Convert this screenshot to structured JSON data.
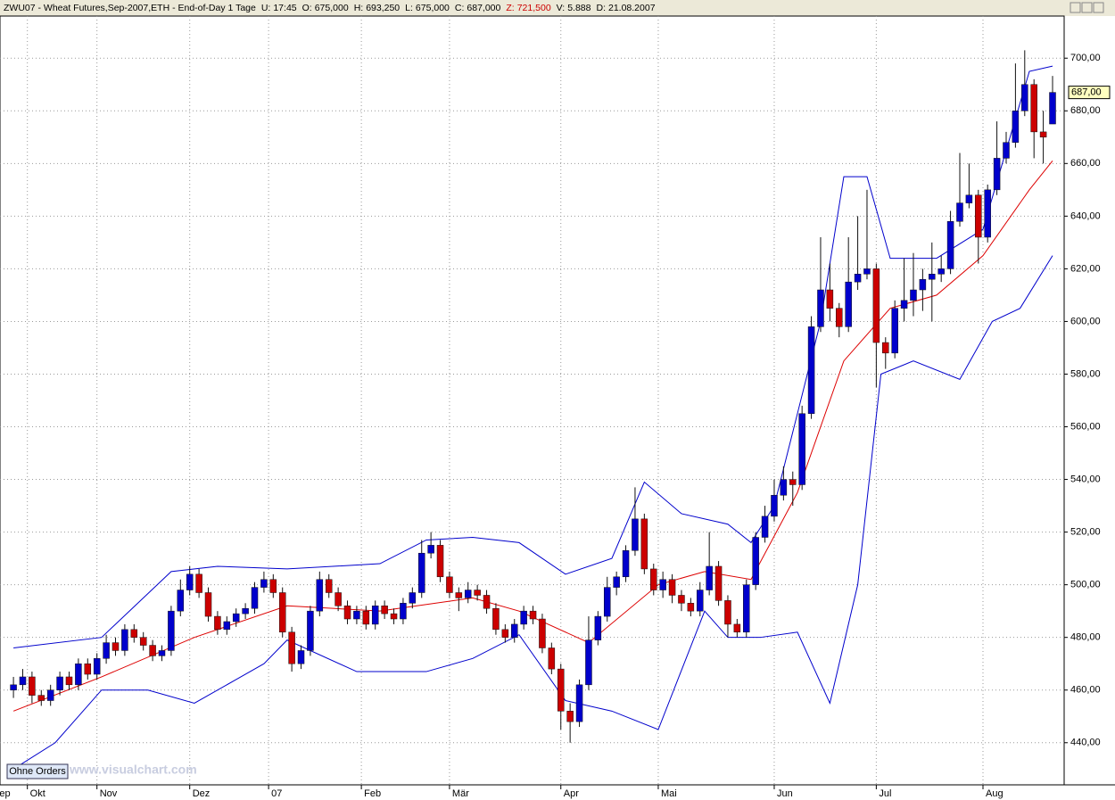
{
  "header": {
    "symbol": "ZWU07 - Wheat Futures,Sep-2007,ETH - End-of-Day 1 Tage",
    "fields": [
      {
        "label": "U:",
        "value": "17:45"
      },
      {
        "label": "O:",
        "value": "675,000"
      },
      {
        "label": "H:",
        "value": "693,250"
      },
      {
        "label": "L:",
        "value": "675,000"
      },
      {
        "label": "C:",
        "value": "687,000"
      },
      {
        "label": "Z:",
        "value": "721,500"
      },
      {
        "label": "V:",
        "value": "5.888"
      },
      {
        "label": "D:",
        "value": "21.08.2007"
      }
    ]
  },
  "orders_button": "Ohne Orders",
  "watermark": "www.visualchart.com",
  "chart_data": {
    "type": "candlestick",
    "up_color": "#0000cc",
    "down_color": "#cc0000",
    "grid": true,
    "xlim": [
      -1.9,
      227.5
    ],
    "ylim": [
      424,
      716
    ],
    "xticks": [
      {
        "value": -4,
        "label": "Sep"
      },
      {
        "value": 4,
        "label": "Okt"
      },
      {
        "value": 19,
        "label": "Nov"
      },
      {
        "value": 39,
        "label": "Dez"
      },
      {
        "value": 56,
        "label": "07"
      },
      {
        "value": 76,
        "label": "Feb"
      },
      {
        "value": 95,
        "label": "Mär"
      },
      {
        "value": 119,
        "label": "Apr"
      },
      {
        "value": 140,
        "label": "Mai"
      },
      {
        "value": 165,
        "label": "Jun"
      },
      {
        "value": 187,
        "label": "Jul"
      },
      {
        "value": 210,
        "label": "Aug"
      }
    ],
    "yticks": [
      {
        "value": 440,
        "label": "440,00"
      },
      {
        "value": 460,
        "label": "460,00"
      },
      {
        "value": 480,
        "label": "480,00"
      },
      {
        "value": 500,
        "label": "500,00"
      },
      {
        "value": 520,
        "label": "520,00"
      },
      {
        "value": 540,
        "label": "540,00"
      },
      {
        "value": 560,
        "label": "560,00"
      },
      {
        "value": 580,
        "label": "580,00"
      },
      {
        "value": 600,
        "label": "600,00"
      },
      {
        "value": 620,
        "label": "620,00"
      },
      {
        "value": 640,
        "label": "640,00"
      },
      {
        "value": 660,
        "label": "660,00"
      },
      {
        "value": 680,
        "label": "680,00"
      },
      {
        "value": 700,
        "label": "700,00"
      }
    ],
    "last_price": {
      "value": 687,
      "label": "687,00"
    },
    "x": [
      1,
      3,
      5,
      7,
      9,
      11,
      13,
      15,
      17,
      19,
      21,
      23,
      25,
      27,
      29,
      31,
      33,
      35,
      37,
      39,
      41,
      43,
      45,
      47,
      49,
      51,
      53,
      55,
      57,
      59,
      61,
      63,
      65,
      67,
      69,
      71,
      73,
      75,
      77,
      79,
      81,
      83,
      85,
      87,
      89,
      91,
      93,
      95,
      97,
      99,
      101,
      103,
      105,
      107,
      109,
      111,
      113,
      115,
      117,
      119,
      121,
      123,
      125,
      127,
      129,
      131,
      133,
      135,
      137,
      139,
      141,
      143,
      145,
      147,
      149,
      151,
      153,
      155,
      157,
      159,
      161,
      163,
      165,
      167,
      169,
      171,
      173,
      175,
      177,
      179,
      181,
      183,
      185,
      187,
      189,
      191,
      193,
      195,
      197,
      199,
      201,
      203,
      205,
      207,
      209,
      211,
      213,
      215,
      217,
      219,
      221,
      223,
      225
    ],
    "open": [
      460,
      462,
      465,
      458,
      456,
      460,
      465,
      462,
      470,
      466,
      472,
      478,
      475,
      483,
      480,
      477,
      473,
      475,
      490,
      498,
      504,
      497,
      488,
      483,
      486,
      489,
      491,
      499,
      502,
      497,
      482,
      470,
      475,
      490,
      502,
      497,
      492,
      487,
      490,
      485,
      492,
      489,
      487,
      493,
      497,
      512,
      515,
      503,
      497,
      495,
      498,
      496,
      491,
      483,
      480,
      485,
      490,
      487,
      476,
      468,
      452,
      448,
      462,
      479,
      488,
      499,
      503,
      513,
      525,
      506,
      498,
      502,
      496,
      493,
      490,
      498,
      507,
      494,
      485,
      482,
      500,
      518,
      526,
      534,
      540,
      538,
      565,
      598,
      612,
      605,
      598,
      615,
      618,
      620,
      592,
      588,
      605,
      608,
      612,
      616,
      618,
      620,
      638,
      645,
      648,
      632,
      650,
      662,
      668,
      680,
      690,
      672,
      675
    ],
    "high": [
      465,
      468,
      467,
      460,
      462,
      467,
      467,
      472,
      472,
      474,
      481,
      480,
      485,
      485,
      482,
      479,
      477,
      492,
      502,
      507,
      506,
      499,
      490,
      488,
      491,
      493,
      501,
      505,
      504,
      499,
      484,
      477,
      492,
      505,
      504,
      499,
      494,
      492,
      492,
      494,
      494,
      491,
      495,
      499,
      517,
      520,
      517,
      505,
      499,
      501,
      500,
      498,
      493,
      485,
      487,
      492,
      492,
      489,
      478,
      470,
      455,
      464,
      488,
      490,
      503,
      505,
      515,
      537,
      527,
      508,
      505,
      504,
      498,
      495,
      501,
      520,
      509,
      496,
      487,
      502,
      520,
      530,
      540,
      545,
      543,
      568,
      602,
      632,
      622,
      607,
      632,
      640,
      650,
      622,
      594,
      608,
      624,
      626,
      620,
      630,
      625,
      642,
      664,
      660,
      650,
      652,
      676,
      672,
      698,
      703,
      692,
      680,
      693.25
    ],
    "low": [
      457,
      460,
      455,
      454,
      454,
      458,
      460,
      460,
      464,
      464,
      470,
      473,
      473,
      478,
      475,
      471,
      471,
      473,
      488,
      496,
      495,
      486,
      481,
      481,
      484,
      487,
      489,
      497,
      495,
      480,
      467,
      468,
      473,
      488,
      495,
      490,
      485,
      485,
      483,
      483,
      487,
      485,
      485,
      491,
      495,
      510,
      501,
      495,
      490,
      493,
      494,
      489,
      481,
      478,
      478,
      483,
      485,
      474,
      466,
      445,
      440,
      446,
      460,
      477,
      486,
      496,
      501,
      511,
      504,
      496,
      495,
      493,
      490,
      488,
      488,
      496,
      492,
      480,
      480,
      480,
      498,
      516,
      524,
      532,
      530,
      536,
      563,
      596,
      600,
      594,
      596,
      612,
      616,
      575,
      582,
      586,
      600,
      602,
      604,
      600,
      615,
      618,
      636,
      643,
      622,
      630,
      648,
      660,
      666,
      678,
      662,
      660,
      675
    ],
    "close": [
      462,
      465,
      458,
      456,
      460,
      465,
      462,
      470,
      466,
      472,
      478,
      475,
      483,
      480,
      477,
      473,
      475,
      490,
      498,
      504,
      497,
      488,
      483,
      486,
      489,
      491,
      499,
      502,
      497,
      482,
      470,
      475,
      490,
      502,
      497,
      492,
      487,
      490,
      485,
      492,
      489,
      487,
      493,
      497,
      512,
      515,
      503,
      497,
      495,
      498,
      496,
      491,
      483,
      480,
      485,
      490,
      487,
      476,
      468,
      452,
      448,
      462,
      479,
      488,
      499,
      503,
      513,
      525,
      506,
      498,
      502,
      496,
      493,
      490,
      498,
      507,
      494,
      485,
      482,
      500,
      518,
      526,
      534,
      540,
      538,
      565,
      598,
      612,
      605,
      598,
      615,
      618,
      620,
      592,
      588,
      605,
      608,
      612,
      616,
      618,
      620,
      638,
      645,
      648,
      632,
      650,
      662,
      668,
      680,
      690,
      672,
      670,
      687
    ],
    "bands": [
      {
        "color": "#0000cc",
        "x": [
          1,
          20,
          35,
          45,
          60,
          80,
          90,
          100,
          110,
          120,
          130,
          137,
          145,
          155,
          160,
          165,
          175,
          180,
          185,
          190,
          200,
          210,
          220,
          225
        ],
        "values": [
          476,
          480,
          505,
          507,
          506,
          508,
          517,
          518,
          516,
          504,
          510,
          539,
          527,
          523,
          516,
          530,
          600,
          655,
          655,
          624,
          624,
          635,
          695,
          697
        ]
      },
      {
        "color": "#dd0000",
        "x": [
          1,
          20,
          40,
          60,
          80,
          100,
          110,
          125,
          140,
          150,
          160,
          170,
          180,
          190,
          200,
          210,
          220,
          225
        ],
        "values": [
          452,
          465,
          480,
          492,
          490,
          495,
          490,
          478,
          500,
          505,
          502,
          535,
          585,
          605,
          610,
          625,
          650,
          661
        ]
      },
      {
        "color": "#0000cc",
        "x": [
          1,
          10,
          20,
          30,
          40,
          55,
          60,
          75,
          90,
          100,
          110,
          120,
          130,
          140,
          150,
          155,
          162,
          170,
          177,
          183,
          188,
          195,
          205,
          212,
          218,
          225
        ],
        "values": [
          430,
          440,
          460,
          460,
          455,
          470,
          479,
          467,
          467,
          472,
          481,
          456,
          452,
          445,
          490,
          480,
          480,
          482,
          455,
          500,
          580,
          585,
          578,
          600,
          605,
          625
        ]
      }
    ]
  }
}
